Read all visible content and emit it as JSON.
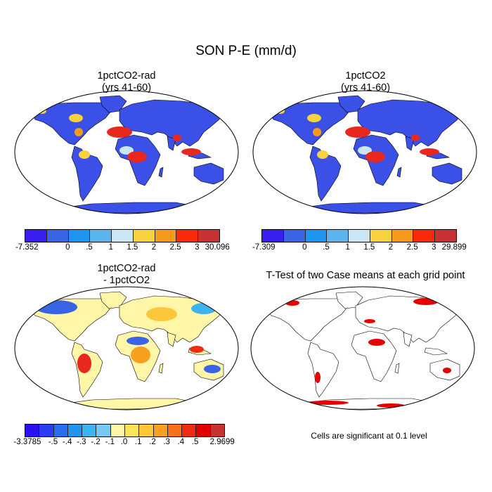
{
  "figure": {
    "title": "SON P-E (mm/d)",
    "note": "Cells are significant at 0.1 level"
  },
  "panels": [
    {
      "id": "p1",
      "title": "1pctCO2-rad\n(yrs 41-60)",
      "fill": "#3a50e6"
    },
    {
      "id": "p2",
      "title": "1pctCO2\n(yrs 41-60)",
      "fill": "#3a50e6"
    },
    {
      "id": "p3",
      "title": "1pctCO2-rad\n- 1pctCO2",
      "fill": "#fff6a8"
    },
    {
      "id": "p4",
      "title": "T-Test of two Case means at each grid point",
      "fill": "#ffffff"
    }
  ],
  "colorbars": [
    {
      "id": "cb1",
      "colors": [
        "#3a1ef0",
        "#3a64e6",
        "#1e96f0",
        "#5ab4ee",
        "#c8e6f4",
        "#f8d23c",
        "#f89a1e",
        "#f82a0a",
        "#c83232"
      ],
      "labels": [
        "-7.352",
        "0",
        ".5",
        "1",
        "1.5",
        "2",
        "2.5",
        "3",
        "30.096"
      ]
    },
    {
      "id": "cb2",
      "colors": [
        "#3a1ef0",
        "#3a64e6",
        "#1e96f0",
        "#5ab4ee",
        "#c8e6f4",
        "#f8d23c",
        "#f89a1e",
        "#f82a0a",
        "#c83232"
      ],
      "labels": [
        "-7.309",
        "0",
        ".5",
        "1",
        "1.5",
        "2",
        "2.5",
        "3",
        "29.899"
      ]
    },
    {
      "id": "cb3",
      "colors": [
        "#2a12f0",
        "#2a3ef0",
        "#2a6ef0",
        "#1e96f0",
        "#3cb4f0",
        "#78c8f4",
        "#fff6a8",
        "#fde35a",
        "#fcc83a",
        "#f8a020",
        "#f87018",
        "#f02c10",
        "#e00000",
        "#c83232"
      ],
      "labels": [
        "-3.3785",
        "-.5",
        "-.4",
        "-.3",
        "-.2",
        "-.1",
        ".0",
        ".1",
        ".2",
        ".3",
        ".4",
        ".5",
        "2.9699"
      ]
    }
  ]
}
